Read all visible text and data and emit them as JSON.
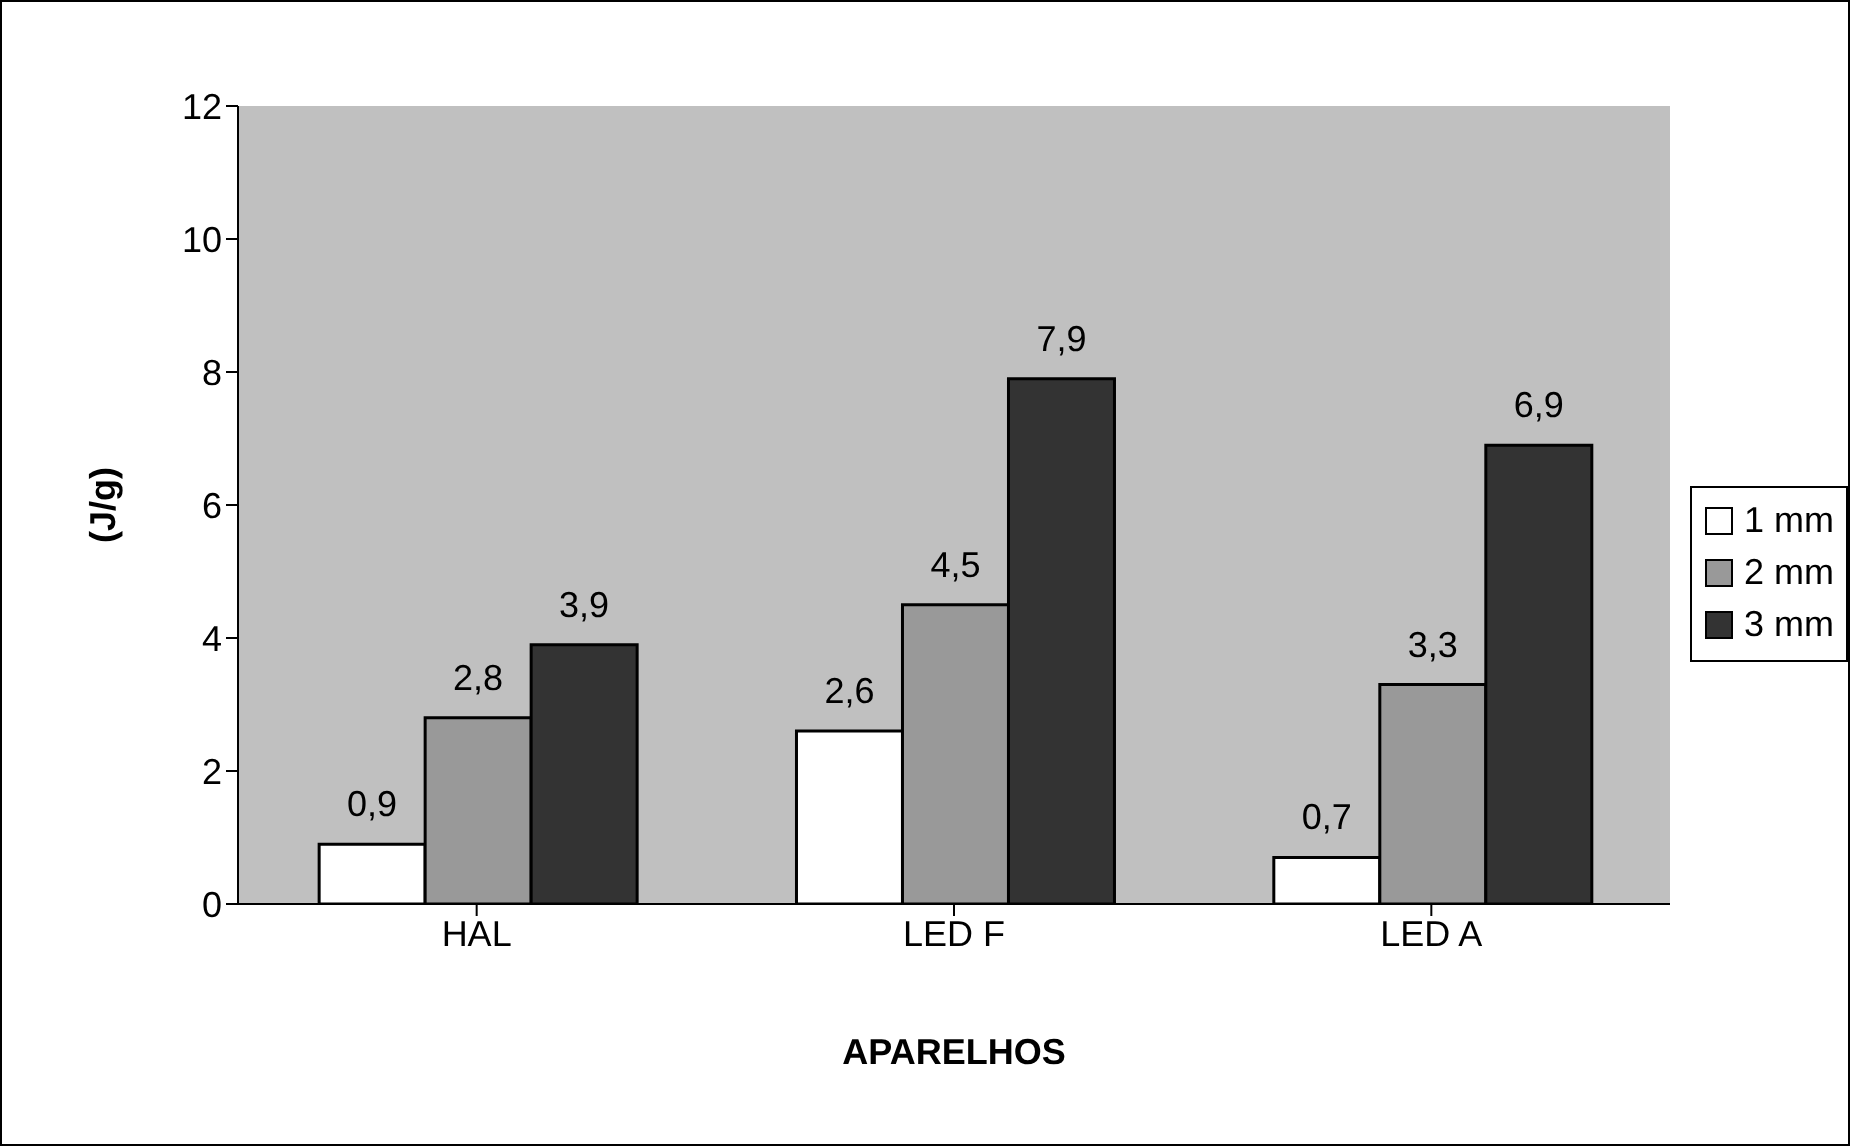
{
  "chart_data": {
    "type": "bar",
    "xlabel": "APARELHOS",
    "ylabel": "(J/g)",
    "categories": [
      "HAL",
      "LED F",
      "LED A"
    ],
    "series": [
      {
        "name": "1 mm",
        "color": "#ffffff",
        "values": [
          0.9,
          2.6,
          0.7
        ],
        "value_labels": [
          "0,9",
          "2,6",
          "0,7"
        ]
      },
      {
        "name": "2 mm",
        "color": "#999999",
        "values": [
          2.8,
          4.5,
          3.3
        ],
        "value_labels": [
          "2,8",
          "4,5",
          "3,3"
        ]
      },
      {
        "name": "3 mm",
        "color": "#333333",
        "values": [
          3.9,
          7.9,
          6.9
        ],
        "value_labels": [
          "3,9",
          "7,9",
          "6,9"
        ]
      }
    ],
    "ylim": [
      0,
      12
    ],
    "yticks": [
      0,
      2,
      4,
      6,
      8,
      10,
      12
    ],
    "legend": "right"
  }
}
